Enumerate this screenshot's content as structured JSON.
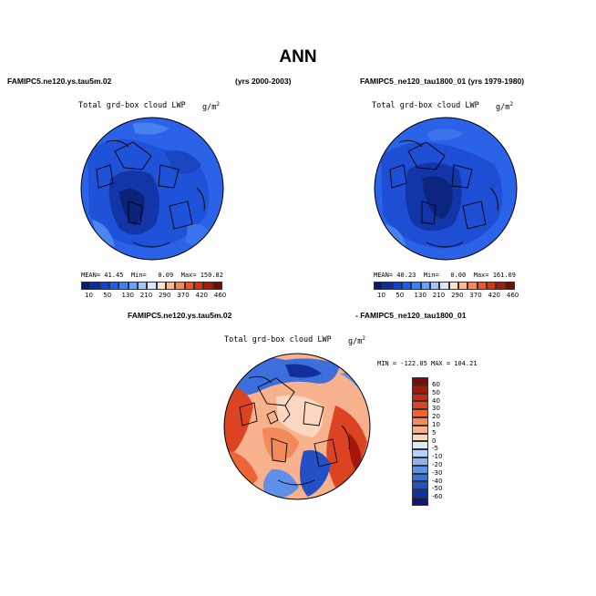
{
  "figure": {
    "title": "ANN",
    "panel_top_left": {
      "case": "FAMIPC5.ne120.ys.tau5m.02",
      "years": "(yrs 2000-2003)",
      "variable": "Total grd-box cloud LWP",
      "units": "g/m",
      "units_exp": "2",
      "stats": {
        "mean_label": "MEAN=",
        "mean": "41.45",
        "min_label": "Min=",
        "min": "0.09",
        "max_label": "Max=",
        "max": "150.82"
      }
    },
    "panel_top_right": {
      "case": "FAMIPC5_ne120_tau1800_01 (yrs 1979-1980)",
      "variable": "Total grd-box cloud LWP",
      "units": "g/m",
      "units_exp": "2",
      "stats": {
        "mean_label": "MEAN=",
        "mean": "40.23",
        "min_label": "Min=",
        "min": "0.00",
        "max_label": "Max=",
        "max": "161.09"
      }
    },
    "panel_bottom": {
      "case_left": "FAMIPC5.ne120.ys.tau5m.02",
      "case_right": "- FAMIPC5_ne120_tau1800_01",
      "variable": "Total grd-box cloud LWP",
      "units": "g/m",
      "units_exp": "2",
      "minmax": "MIN = -122.05  MAX = 104.21"
    },
    "colorbar_top": {
      "labels": [
        "10",
        "50",
        "130",
        "210",
        "290",
        "370",
        "420",
        "460"
      ],
      "colors": [
        "#0a1a6e",
        "#0d2a9e",
        "#1244c8",
        "#1f5ee6",
        "#3f7ff0",
        "#6ea0f5",
        "#a6c4f8",
        "#d8e6fb",
        "#fbe1d2",
        "#f7b79a",
        "#f2875f",
        "#e5582e",
        "#c8381a",
        "#9e1f10",
        "#6e0f08"
      ]
    },
    "colorbar_diff": {
      "labels": [
        "60",
        "50",
        "40",
        "30",
        "20",
        "10",
        "5",
        "0",
        "-5",
        "-10",
        "-20",
        "-30",
        "-40",
        "-50",
        "-60"
      ],
      "colors": [
        "#7a0c06",
        "#a5190d",
        "#c42c16",
        "#dc4322",
        "#ec6435",
        "#f48a5a",
        "#f8b18d",
        "#fbd6c0",
        "#dfe9fa",
        "#b8cff6",
        "#8db2f0",
        "#5f90e8",
        "#3d6fdc",
        "#2350c4",
        "#11309a",
        "#0a1a6e"
      ]
    }
  }
}
